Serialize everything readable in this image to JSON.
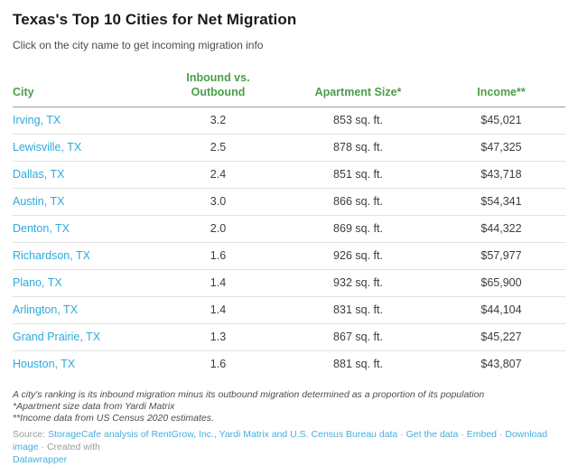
{
  "header": {
    "title": "Texas's Top 10 Cities for Net Migration",
    "subtitle": "Click on the city name to get incoming migration info"
  },
  "chart_data": {
    "type": "table",
    "title": "Texas's Top 10 Cities for Net Migration",
    "subtitle": "Click on the city name to get incoming migration info",
    "columns": [
      "City",
      "Inbound vs. Outbound",
      "Apartment Size*",
      "Income**"
    ],
    "rows": [
      {
        "city": "Irving, TX",
        "inbound": "3.2",
        "apartment": "853 sq. ft.",
        "income": "$45,021"
      },
      {
        "city": "Lewisville, TX",
        "inbound": "2.5",
        "apartment": "878 sq. ft.",
        "income": "$47,325"
      },
      {
        "city": "Dallas, TX",
        "inbound": "2.4",
        "apartment": "851 sq. ft.",
        "income": "$43,718"
      },
      {
        "city": "Austin, TX",
        "inbound": "3.0",
        "apartment": "866 sq. ft.",
        "income": "$54,341"
      },
      {
        "city": "Denton, TX",
        "inbound": "2.0",
        "apartment": "869 sq. ft.",
        "income": "$44,322"
      },
      {
        "city": "Richardson, TX",
        "inbound": "1.6",
        "apartment": "926 sq. ft.",
        "income": "$57,977"
      },
      {
        "city": "Plano, TX",
        "inbound": "1.4",
        "apartment": "932 sq. ft.",
        "income": "$65,900"
      },
      {
        "city": "Arlington, TX",
        "inbound": "1.4",
        "apartment": "831 sq. ft.",
        "income": "$44,104"
      },
      {
        "city": "Grand Prairie, TX",
        "inbound": "1.3",
        "apartment": "867 sq. ft.",
        "income": "$45,227"
      },
      {
        "city": "Houston, TX",
        "inbound": "1.6",
        "apartment": "881 sq. ft.",
        "income": "$43,807"
      }
    ]
  },
  "footnotes": [
    "A city's ranking is its inbound migration minus its outbound migration determined as a proportion of its population",
    "*Apartment size data from Yardi Matrix",
    "**Income data from US Census 2020 estimates."
  ],
  "source": {
    "label": "Source:",
    "main_link": "StorageCafe analysis of RentGrow, Inc., Yardi Matrix and U.S. Census Bureau data",
    "separator": "·",
    "link_get_data": "Get the data",
    "link_embed": "Embed",
    "link_download": "Download image",
    "created_with": "Created with",
    "brand_link": "Datawrapper"
  },
  "colors": {
    "header_green": "#4a9e4a",
    "city_link_blue": "#2eaadc",
    "footer_link_blue": "#45aede",
    "title_text": "#1a1a1a",
    "body_text": "#3c3c3c",
    "row_divider": "#e1e1e1",
    "header_divider": "#9b9b9b"
  }
}
